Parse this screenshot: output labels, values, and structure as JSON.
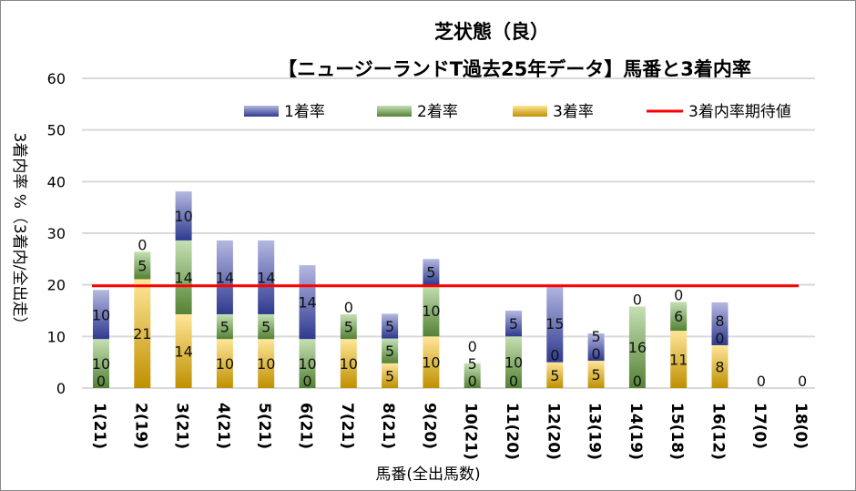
{
  "chart_data": {
    "type": "bar",
    "stacked": true,
    "title_line1": "芝状態（良）",
    "title_line2": "【ニュージーランドT過去25年データ】馬番と3着内率",
    "xlabel": "馬番(全出馬数)",
    "ylabel": "3着内率 %（3着内/全出走）",
    "ylim": [
      0,
      60
    ],
    "yticks": [
      "0",
      "10",
      "20",
      "30",
      "40",
      "50",
      "60"
    ],
    "grid": true,
    "legend_position": "top",
    "categories": [
      "1(21)",
      "2(19)",
      "3(21)",
      "4(21)",
      "5(21)",
      "6(21)",
      "7(21)",
      "8(21)",
      "9(20)",
      "10(21)",
      "11(20)",
      "12(20)",
      "13(19)",
      "14(19)",
      "15(18)",
      "16(12)",
      "17(0)",
      "18(0)"
    ],
    "series": [
      {
        "name": "3着率",
        "color": "#bf9000",
        "values": [
          0,
          21.1,
          14.3,
          9.5,
          9.5,
          0,
          9.5,
          4.8,
          10,
          0,
          0,
          5,
          5.3,
          0,
          11.1,
          8.3,
          0,
          0
        ],
        "labels": [
          "0",
          "21",
          "14",
          "10",
          "10",
          "0",
          "10",
          "5",
          "10",
          "0",
          "0",
          "5",
          "5",
          "0",
          "11",
          "8",
          "0",
          "0"
        ]
      },
      {
        "name": "2着率",
        "color": "#548235",
        "values": [
          9.5,
          5.3,
          14.3,
          4.8,
          4.8,
          9.5,
          4.8,
          4.8,
          10,
          4.8,
          10,
          0,
          0,
          15.8,
          5.6,
          0,
          0,
          0
        ],
        "labels": [
          "10",
          "5",
          "14",
          "5",
          "5",
          "10",
          "5",
          "5",
          "10",
          "5",
          "10",
          "0",
          "0",
          "16",
          "6",
          "0",
          "",
          ""
        ]
      },
      {
        "name": "1着率",
        "color": "#2f3a8f",
        "values": [
          9.5,
          0,
          9.5,
          14.3,
          14.3,
          14.3,
          0,
          4.8,
          5,
          0,
          5,
          15,
          5.3,
          0,
          0,
          8.3,
          0,
          0
        ],
        "labels": [
          "10",
          "0",
          "10",
          "14",
          "14",
          "14",
          "0",
          "5",
          "5",
          "0",
          "5",
          "15",
          "5",
          "0",
          "0",
          "8",
          "",
          ""
        ]
      }
    ],
    "expected_line": {
      "name": "3着内率期待値",
      "color": "#ff0000",
      "value": 19.8
    }
  }
}
